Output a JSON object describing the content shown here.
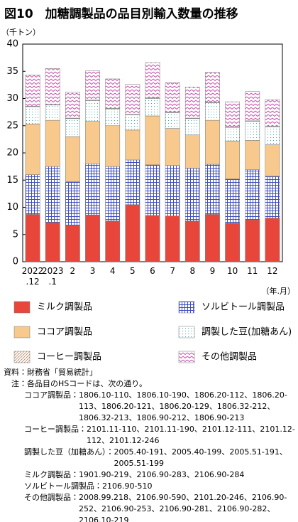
{
  "chart_data": {
    "type": "stacked-bar",
    "title": "図10　加糖調製品の品目別輸入数量の推移",
    "y_label": "（千トン）",
    "x_label": "（年.月）",
    "categories": [
      "2022\n.12",
      "2023\n.1",
      "2",
      "3",
      "4",
      "5",
      "6",
      "7",
      "8",
      "9",
      "10",
      "11",
      "12"
    ],
    "ylim": [
      0,
      40
    ],
    "yticks": [
      0,
      5,
      10,
      15,
      20,
      25,
      30,
      35,
      40
    ],
    "grid": false,
    "series": [
      {
        "name": "ミルク調製品",
        "color": "#e8463b",
        "pattern": "solid",
        "values": [
          8.7,
          7.2,
          6.7,
          8.6,
          7.5,
          10.5,
          8.5,
          8.4,
          7.5,
          8.7,
          7.1,
          7.7,
          8.0
        ]
      },
      {
        "name": "ソルビトール調製品",
        "color": "#3f4fbf",
        "pattern": "grid",
        "values": [
          7.3,
          10.3,
          8.0,
          9.4,
          10.0,
          8.2,
          9.3,
          9.3,
          9.7,
          9.2,
          8.1,
          9.2,
          7.7
        ]
      },
      {
        "name": "ココア調製品",
        "color": "#f7c98c",
        "pattern": "solid",
        "values": [
          9.3,
          8.5,
          8.3,
          7.8,
          7.5,
          5.5,
          9.0,
          6.8,
          6.1,
          8.1,
          7.0,
          5.4,
          5.8
        ]
      },
      {
        "name": "調製した豆(加糖あん)",
        "color": "#3fa8a8",
        "pattern": "dots",
        "values": [
          3.2,
          2.8,
          3.3,
          3.8,
          3.1,
          2.8,
          3.2,
          2.9,
          3.0,
          3.2,
          2.5,
          3.5,
          3.3
        ]
      },
      {
        "name": "コーヒー調製品",
        "color": "#b08058",
        "pattern": "hatch",
        "values": [
          0.1,
          0.1,
          0.1,
          0.1,
          0.1,
          0.1,
          0.1,
          0.1,
          0.1,
          0.1,
          0.1,
          0.1,
          0.1
        ]
      },
      {
        "name": "その他調製品",
        "color": "#c44aa8",
        "pattern": "zigzag",
        "values": [
          5.7,
          6.6,
          4.8,
          5.4,
          5.4,
          5.5,
          6.5,
          5.4,
          5.7,
          5.5,
          4.6,
          5.4,
          4.9
        ]
      }
    ]
  },
  "notes": {
    "source_label": "資料：",
    "source": "財務省「貿易統計」",
    "note_label": "注：",
    "note": "各品目のHSコードは、次の通り。",
    "items": [
      {
        "label": "ココア調製品：",
        "codes": "1806.10-110、1806.10-190、1806.20-112、1806.20-113、1806.20-121、1806.20-129、1806.32-212、1806.32-213、1806.90-212、1806.90-213"
      },
      {
        "label": "コーヒー調製品：",
        "codes": "2101.11-110、2101.11-190、2101.12-111、2101.12-112、2101.12-246"
      },
      {
        "label": "調製した豆（加糖あん）：",
        "codes": "2005.40-191、2005.40-199、2005.51-191、2005.51-199"
      },
      {
        "label": "ミルク調製品：",
        "codes": "1901.90-219、2106.90-283、2106.90-284"
      },
      {
        "label": "ソルビトール調製品：",
        "codes": "2106.90-510"
      },
      {
        "label": "その他調製品：",
        "codes": "2008.99.218、2106.90-590、2101.20-246、2106.90-252、2106.90-253、2106.90-281、2106.90-282、2106.10-219"
      }
    ]
  }
}
